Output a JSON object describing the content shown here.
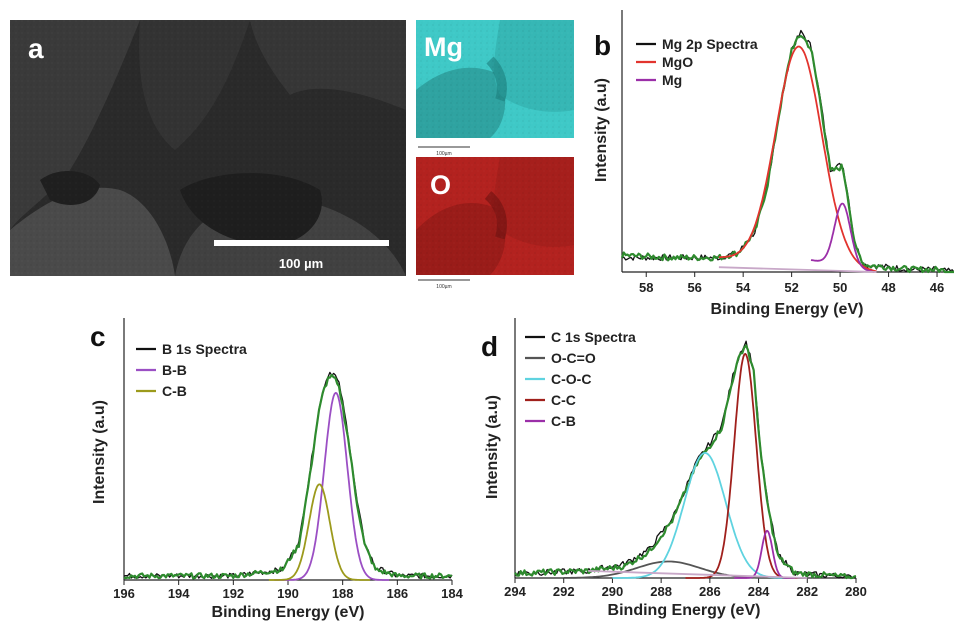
{
  "panels": {
    "a": {
      "letter": "a",
      "scale_label": "100 µm"
    },
    "mg_map": {
      "label": "Mg",
      "scale_label": "100µm",
      "color": "#3fc9c7"
    },
    "o_map": {
      "label": "O",
      "scale_label": "100µm",
      "color": "#b3221f"
    }
  },
  "chart_data": [
    {
      "id": "b",
      "letter": "b",
      "type": "line",
      "xlabel": "Binding Energy (eV)",
      "ylabel": "Intensity (a.u)",
      "xlim": [
        59,
        45.3
      ],
      "ylim": [
        0,
        1
      ],
      "xticks": [
        "58",
        "56",
        "54",
        "52",
        "50",
        "48",
        "46"
      ],
      "xtick_values": [
        58,
        56,
        54,
        52,
        50,
        48,
        46
      ],
      "legend": [
        {
          "name": "Mg 2p Spectra",
          "color": "#111111"
        },
        {
          "name": "MgO",
          "color": "#e2342e"
        },
        {
          "name": "Mg",
          "color": "#9b2fa8"
        }
      ],
      "series": [
        {
          "name": "Mg 2p Spectra",
          "color": "#111111",
          "kind": "noisy",
          "x": [
            59,
            57,
            55,
            54.2,
            53.5,
            53,
            52.5,
            52,
            51.6,
            51.2,
            50.8,
            50.4,
            50.1,
            49.9,
            49.7,
            49.4,
            49,
            48,
            47,
            46,
            45.3
          ],
          "y": [
            0.06,
            0.06,
            0.06,
            0.08,
            0.17,
            0.36,
            0.67,
            0.93,
            1.0,
            0.94,
            0.71,
            0.43,
            0.44,
            0.45,
            0.34,
            0.12,
            0.03,
            0.02,
            0.01,
            0.01,
            0.0
          ]
        },
        {
          "name": "fit",
          "color": "#2e8b2e",
          "kind": "noisy",
          "x": [
            59,
            57,
            55,
            54.2,
            53.5,
            53,
            52.5,
            52,
            51.6,
            51.2,
            50.8,
            50.4,
            50.1,
            49.9,
            49.7,
            49.4,
            49,
            48,
            47,
            46,
            45.3
          ],
          "y": [
            0.07,
            0.06,
            0.06,
            0.08,
            0.17,
            0.36,
            0.67,
            0.93,
            0.99,
            0.93,
            0.7,
            0.42,
            0.43,
            0.44,
            0.33,
            0.11,
            0.03,
            0.02,
            0.01,
            0.01,
            0.0
          ]
        },
        {
          "name": "MgO",
          "color": "#e2342e",
          "kind": "peak",
          "center": 51.7,
          "sigma": 0.95,
          "amp": 0.91,
          "base": 0.06,
          "range": [
            55,
            48.5
          ]
        },
        {
          "name": "Mg",
          "color": "#9b2fa8",
          "kind": "peak",
          "center": 49.9,
          "sigma": 0.33,
          "amp": 0.26,
          "base": 0.05,
          "range": [
            51.2,
            48.6
          ]
        },
        {
          "name": "background",
          "color": "#c8a8c8",
          "kind": "line",
          "x": [
            55,
            48.5
          ],
          "y": [
            0.02,
            0.0
          ]
        }
      ]
    },
    {
      "id": "c",
      "letter": "c",
      "type": "line",
      "xlabel": "Binding Energy (eV)",
      "ylabel": "Intensity (a.u)",
      "xlim": [
        196,
        184
      ],
      "ylim": [
        0,
        1
      ],
      "xticks": [
        "196",
        "194",
        "192",
        "190",
        "188",
        "186",
        "184"
      ],
      "xtick_values": [
        196,
        194,
        192,
        190,
        188,
        186,
        184
      ],
      "legend": [
        {
          "name": "B 1s Spectra",
          "color": "#111111"
        },
        {
          "name": "B-B",
          "color": "#9b4fc4"
        },
        {
          "name": "C-B",
          "color": "#9c9a1c"
        }
      ],
      "series": [
        {
          "name": "B 1s Spectra",
          "color": "#111111",
          "kind": "noisy",
          "x": [
            196,
            192,
            190.2,
            189.6,
            189.2,
            188.9,
            188.7,
            188.5,
            188.3,
            188.1,
            187.8,
            187.5,
            187.2,
            186.8,
            186,
            184
          ],
          "y": [
            0.02,
            0.02,
            0.05,
            0.18,
            0.52,
            0.8,
            0.92,
            1.0,
            0.99,
            0.93,
            0.7,
            0.4,
            0.18,
            0.06,
            0.02,
            0.02
          ]
        },
        {
          "name": "fit",
          "color": "#2e8b2e",
          "kind": "noisy",
          "x": [
            196,
            192,
            190.2,
            189.6,
            189.2,
            188.9,
            188.7,
            188.5,
            188.3,
            188.1,
            187.8,
            187.5,
            187.2,
            186.8,
            186,
            184
          ],
          "y": [
            0.02,
            0.02,
            0.05,
            0.17,
            0.5,
            0.79,
            0.91,
            0.98,
            0.97,
            0.91,
            0.68,
            0.39,
            0.17,
            0.05,
            0.02,
            0.02
          ]
        },
        {
          "name": "B-B",
          "color": "#9b4fc4",
          "kind": "peak",
          "center": 188.25,
          "sigma": 0.42,
          "amp": 0.9,
          "base": 0.0,
          "range": [
            190.5,
            186.3
          ]
        },
        {
          "name": "C-B",
          "color": "#9c9a1c",
          "kind": "peak",
          "center": 188.85,
          "sigma": 0.38,
          "amp": 0.46,
          "base": 0.0,
          "range": [
            190.7,
            187
          ]
        }
      ]
    },
    {
      "id": "d",
      "letter": "d",
      "type": "line",
      "xlabel": "Binding Energy (eV)",
      "ylabel": "Intensity (a.u)",
      "xlim": [
        294,
        280
      ],
      "ylim": [
        0,
        1
      ],
      "xticks": [
        "294",
        "292",
        "290",
        "288",
        "286",
        "284",
        "282",
        "280"
      ],
      "xtick_values": [
        294,
        292,
        290,
        288,
        286,
        284,
        282,
        280
      ],
      "legend": [
        {
          "name": "C 1s Spectra",
          "color": "#111111"
        },
        {
          "name": "O-C=O",
          "color": "#555555"
        },
        {
          "name": "C-O-C",
          "color": "#5fd3e0"
        },
        {
          "name": "C-C",
          "color": "#a0201c"
        },
        {
          "name": "C-B",
          "color": "#9b2fa8"
        }
      ],
      "series": [
        {
          "name": "C 1s Spectra",
          "color": "#111111",
          "kind": "noisy",
          "x": [
            294,
            291,
            289.5,
            288.5,
            287.5,
            287,
            286.5,
            286,
            285.5,
            285,
            284.7,
            284.5,
            284.2,
            283.9,
            283.6,
            283.2,
            282.5,
            281,
            280
          ],
          "y": [
            0.02,
            0.03,
            0.06,
            0.12,
            0.26,
            0.38,
            0.5,
            0.57,
            0.65,
            0.88,
            0.97,
            1.0,
            0.88,
            0.52,
            0.3,
            0.1,
            0.02,
            0.01,
            0.0
          ]
        },
        {
          "name": "fit",
          "color": "#2e8b2e",
          "kind": "noisy",
          "x": [
            294,
            291,
            289.5,
            288.5,
            287.5,
            287,
            286.5,
            286,
            285.5,
            285,
            284.7,
            284.5,
            284.2,
            283.9,
            283.6,
            283.2,
            282.5,
            281,
            280
          ],
          "y": [
            0.02,
            0.03,
            0.05,
            0.11,
            0.25,
            0.37,
            0.49,
            0.56,
            0.64,
            0.87,
            0.96,
            0.99,
            0.87,
            0.51,
            0.29,
            0.09,
            0.02,
            0.01,
            0.0
          ]
        },
        {
          "name": "O-C=O",
          "color": "#555555",
          "kind": "peak",
          "center": 287.7,
          "sigma": 1.3,
          "amp": 0.07,
          "base": 0.0,
          "range": [
            292,
            282
          ]
        },
        {
          "name": "C-O-C",
          "color": "#5fd3e0",
          "kind": "peak",
          "center": 286.2,
          "sigma": 0.85,
          "amp": 0.53,
          "base": 0.0,
          "range": [
            290,
            282.5
          ]
        },
        {
          "name": "C-C",
          "color": "#a0201c",
          "kind": "peak",
          "center": 284.55,
          "sigma": 0.45,
          "amp": 0.95,
          "base": 0.0,
          "range": [
            287,
            282.4
          ]
        },
        {
          "name": "C-B",
          "color": "#9b2fa8",
          "kind": "peak",
          "center": 283.65,
          "sigma": 0.22,
          "amp": 0.2,
          "base": 0.0,
          "range": [
            285,
            282.5
          ]
        },
        {
          "name": "background",
          "color": "#c8a8c8",
          "kind": "line",
          "x": [
            291,
            282
          ],
          "y": [
            0.03,
            0.0
          ]
        }
      ]
    }
  ]
}
